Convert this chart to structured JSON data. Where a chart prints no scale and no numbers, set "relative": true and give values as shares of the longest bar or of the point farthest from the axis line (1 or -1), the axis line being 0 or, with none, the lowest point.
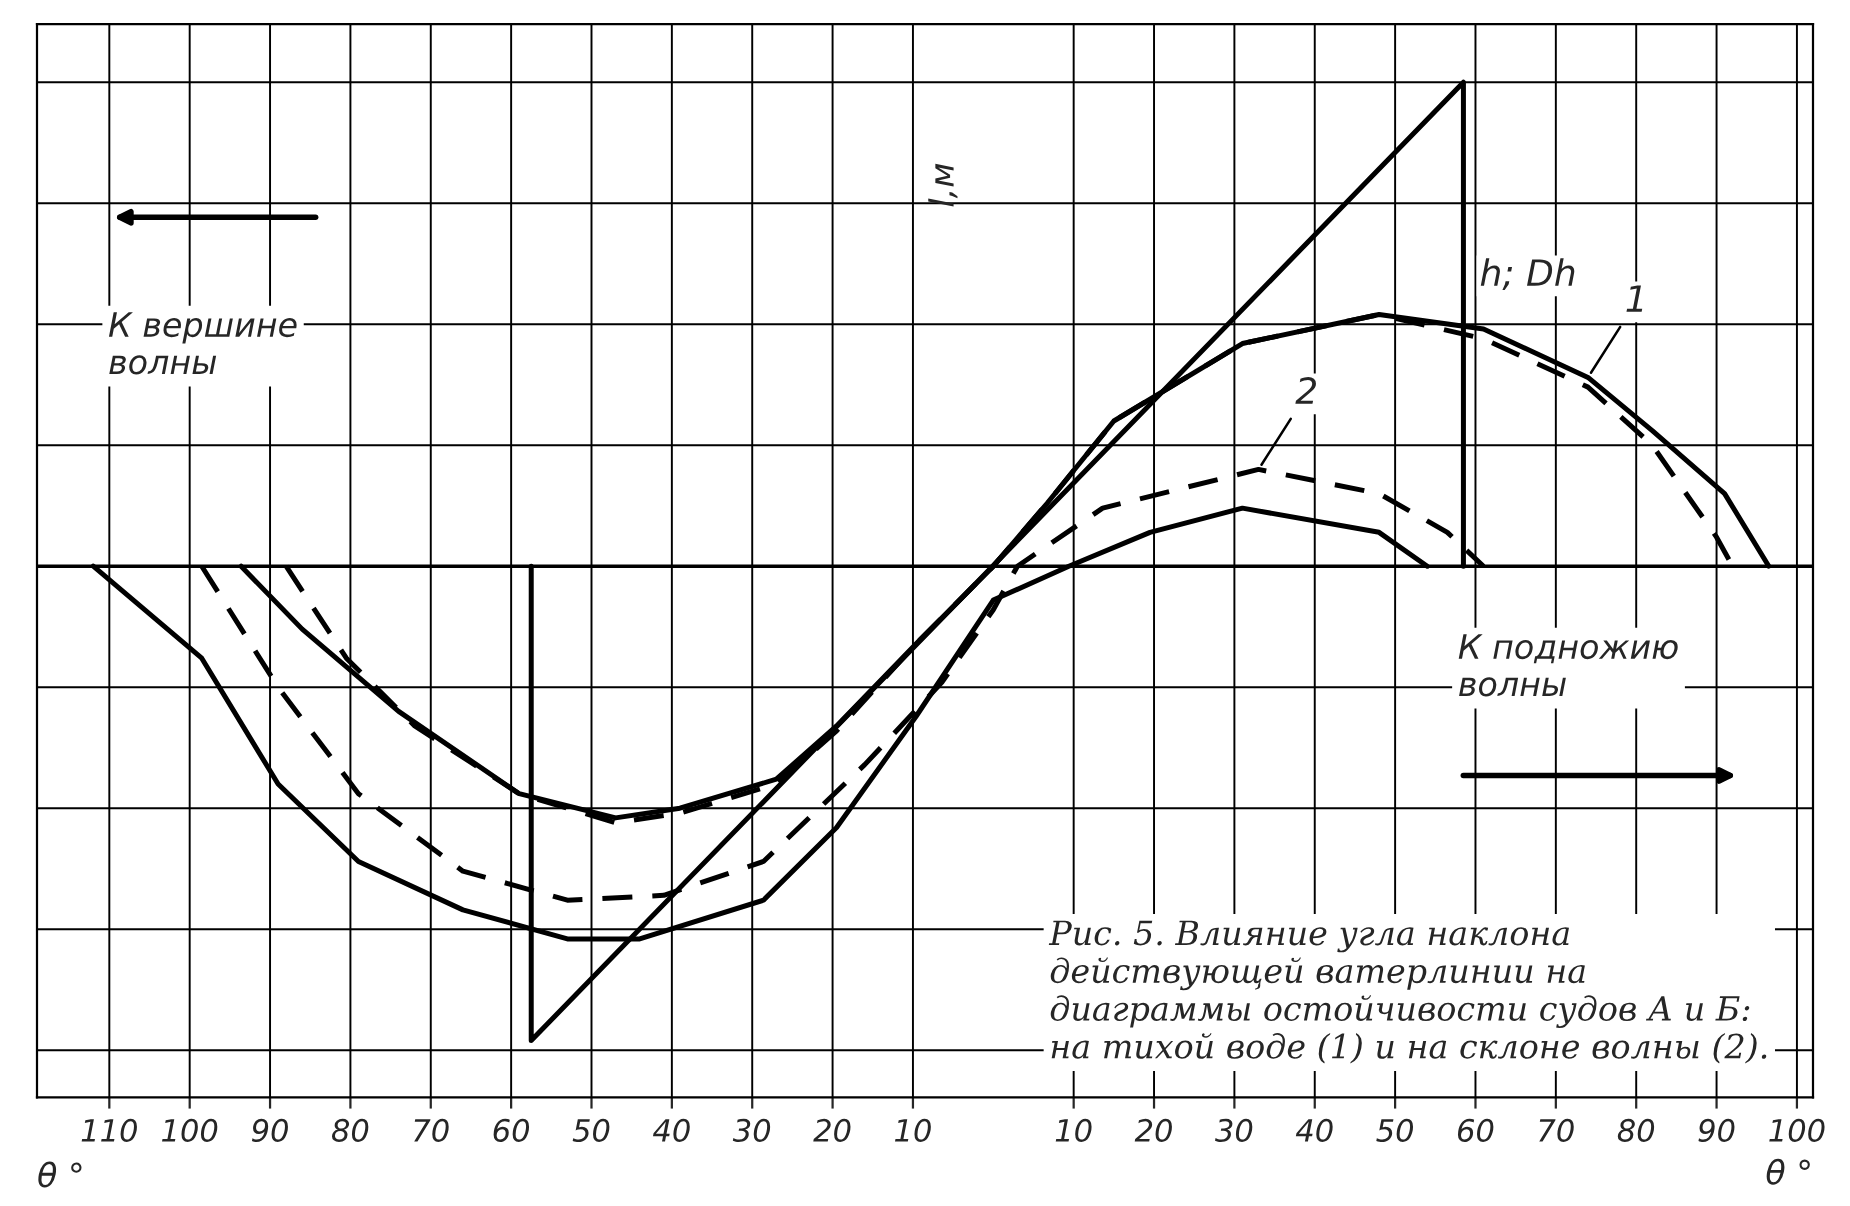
{
  "chart_data": {
    "type": "line",
    "relative": true,
    "xlabel": "θ °",
    "ylabel": "l,м",
    "xlim": [
      -119,
      102
    ],
    "xticks": [
      {
        "value": -110,
        "label": "110"
      },
      {
        "value": -100,
        "label": "100"
      },
      {
        "value": -90,
        "label": "90"
      },
      {
        "value": -80,
        "label": "80"
      },
      {
        "value": -70,
        "label": "70"
      },
      {
        "value": -60,
        "label": "60"
      },
      {
        "value": -50,
        "label": "50"
      },
      {
        "value": -40,
        "label": "40"
      },
      {
        "value": -30,
        "label": "30"
      },
      {
        "value": -20,
        "label": "20"
      },
      {
        "value": -10,
        "label": "10"
      },
      10,
      20,
      30,
      40,
      50,
      60,
      70,
      80,
      90,
      100
    ],
    "tick_labels": "x",
    "grid": true,
    "marker": "none",
    "series": [
      {
        "name": "1",
        "color": "#000000",
        "line_style": "solid",
        "x": [
          -93.6,
          -86,
          -74,
          -59,
          -47,
          -39,
          -27,
          -19.5,
          -9.6,
          0,
          6.7,
          15,
          31,
          48,
          61,
          74,
          82,
          91,
          96.5
        ],
        "values": [
          0,
          -0.13,
          -0.3,
          -0.47,
          -0.52,
          -0.5,
          -0.44,
          -0.33,
          -0.16,
          0,
          0.13,
          0.3,
          0.46,
          0.52,
          0.49,
          0.39,
          0.28,
          0.15,
          0
        ]
      },
      {
        "color": "#000000",
        "line_style": "dashed",
        "x": [
          -88,
          -80.5,
          -72,
          -59,
          -47,
          -39,
          -27,
          -19.5,
          -9.6,
          0,
          6.7,
          15,
          31,
          48,
          61,
          74,
          82,
          90,
          92
        ],
        "values": [
          0,
          -0.19,
          -0.33,
          -0.47,
          -0.53,
          -0.51,
          -0.45,
          -0.34,
          -0.16,
          0,
          0.13,
          0.3,
          0.46,
          0.52,
          0.47,
          0.37,
          0.25,
          0.06,
          0
        ]
      },
      {
        "name": "2",
        "color": "#000000",
        "line_style": "dashed",
        "x": [
          -98.5,
          -89,
          -79,
          -66,
          -53,
          -41,
          -28.6,
          -16,
          -6.4,
          0,
          3,
          13.6,
          33,
          48,
          56.5,
          61
        ],
        "values": [
          0,
          -0.25,
          -0.47,
          -0.63,
          -0.69,
          -0.68,
          -0.61,
          -0.41,
          -0.24,
          -0.09,
          0,
          0.12,
          0.2,
          0.15,
          0.07,
          0
        ]
      },
      {
        "color": "#000000",
        "line_style": "solid",
        "x": [
          -112,
          -98.5,
          -89,
          -79,
          -66,
          -53,
          -44,
          -28.6,
          -19.5,
          -9.6,
          0,
          9.4,
          19.5,
          31,
          48,
          54
        ],
        "values": [
          0,
          -0.19,
          -0.45,
          -0.61,
          -0.71,
          -0.77,
          -0.77,
          -0.69,
          -0.54,
          -0.31,
          -0.07,
          0,
          0.07,
          0.12,
          0.07,
          0
        ]
      },
      {
        "name": "h; Dh",
        "color": "#000000",
        "line_style": "solid",
        "x": [
          -57.5,
          -57.5,
          58.5,
          58.5
        ],
        "values": [
          0,
          -0.98,
          1,
          0
        ]
      }
    ],
    "annotations": [
      "θ °",
      "К вершине\nволны",
      "К подножию\nволны",
      "Рис. 5. Влияние угла наклона действующей ватерлинии на диаграммы остойчивости судов А и Б: на тихой воде (1) и на склоне волны (2)."
    ]
  }
}
